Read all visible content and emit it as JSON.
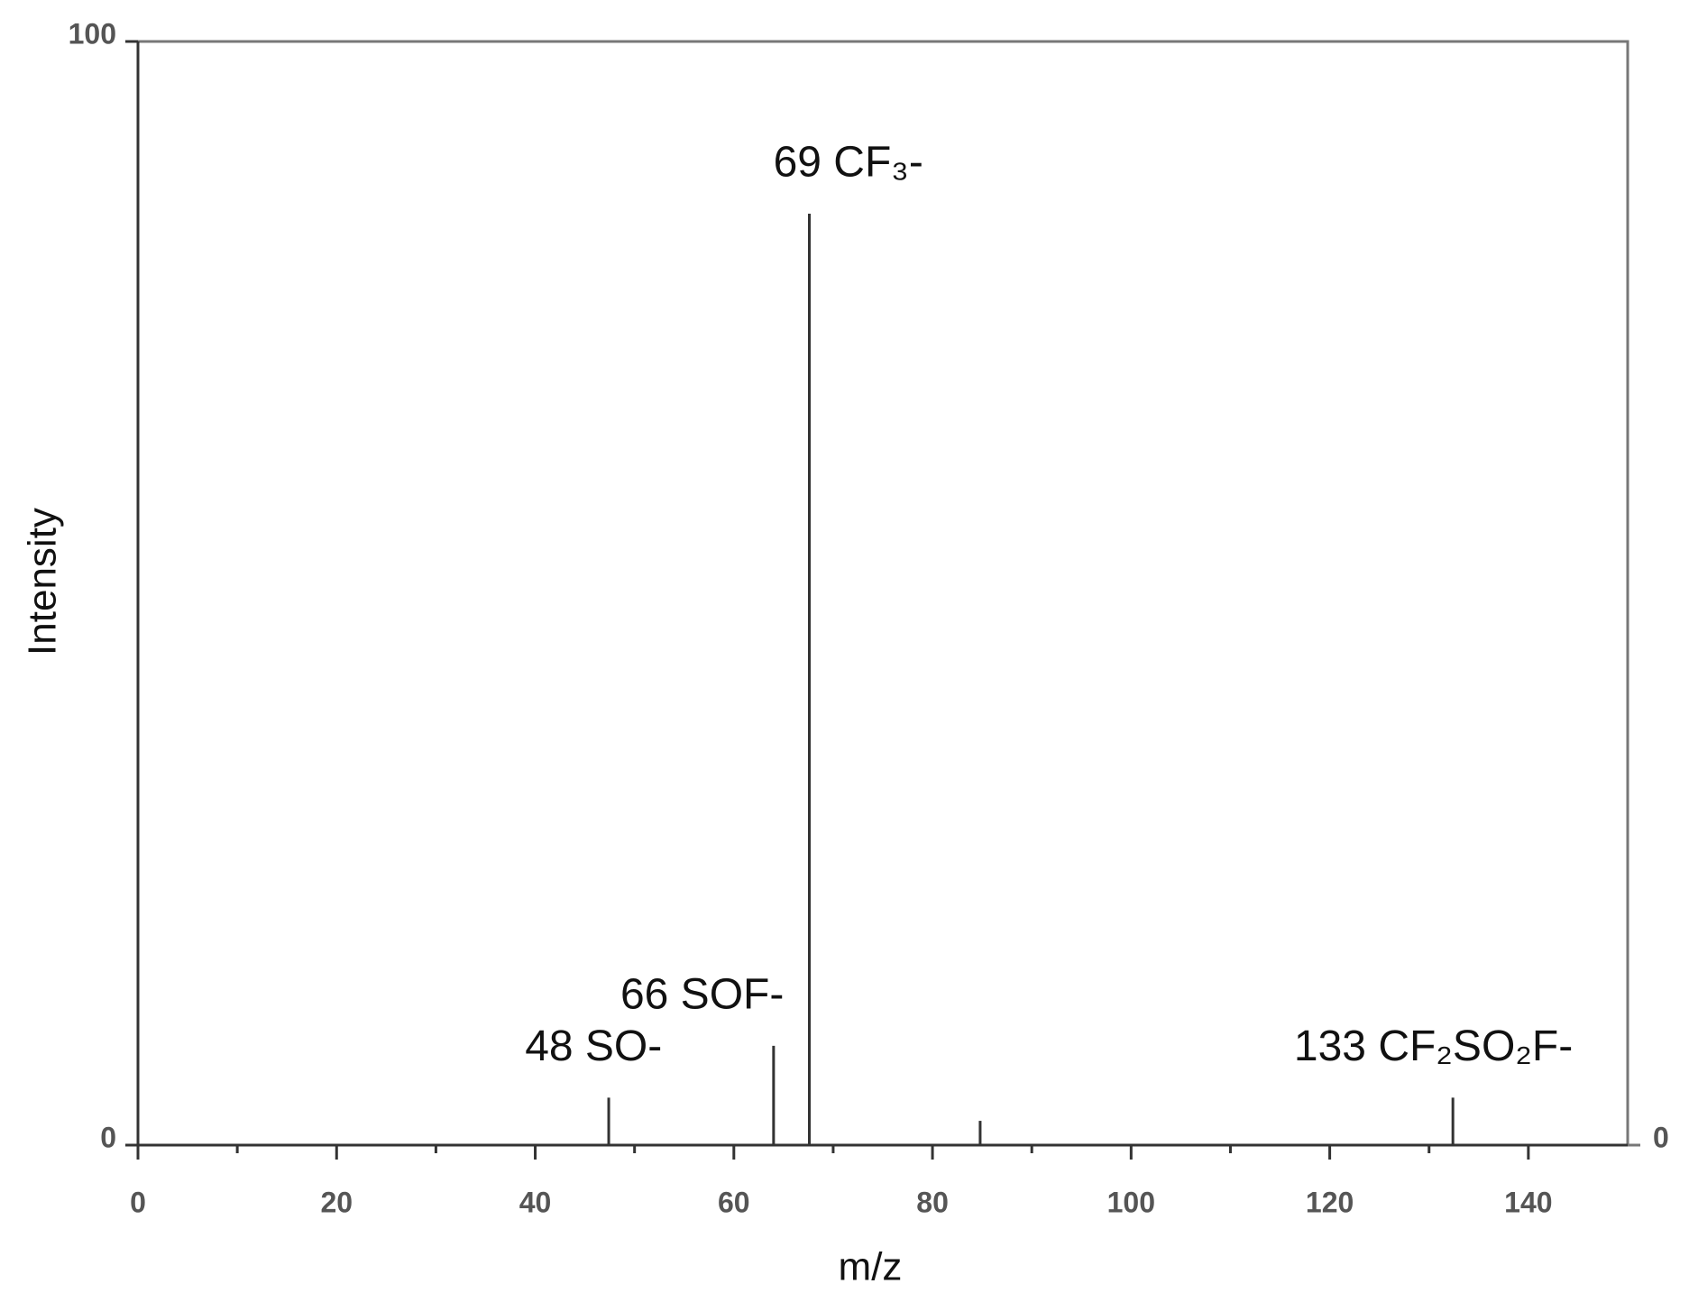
{
  "chart_data": {
    "type": "stem",
    "x_label": "m/z",
    "y_label": "Intensity",
    "x": [
      47.4,
      64.0,
      67.6,
      84.8,
      132.4
    ],
    "values": [
      4.3,
      9.0,
      84.4,
      2.2,
      4.3
    ],
    "peak_labels": [
      "48 SO-",
      "66 SOF-",
      "69 CF₃-",
      null,
      "133 CF₂SO₂F-"
    ],
    "color": "#333333",
    "xlim": [
      0,
      150
    ],
    "xticks": [
      0,
      20,
      40,
      60,
      80,
      100,
      120,
      140
    ],
    "ylim": [
      0,
      100
    ],
    "yticks": [
      0,
      100
    ],
    "y2lim": [
      0,
      100
    ],
    "y2ticks": [
      0
    ]
  }
}
